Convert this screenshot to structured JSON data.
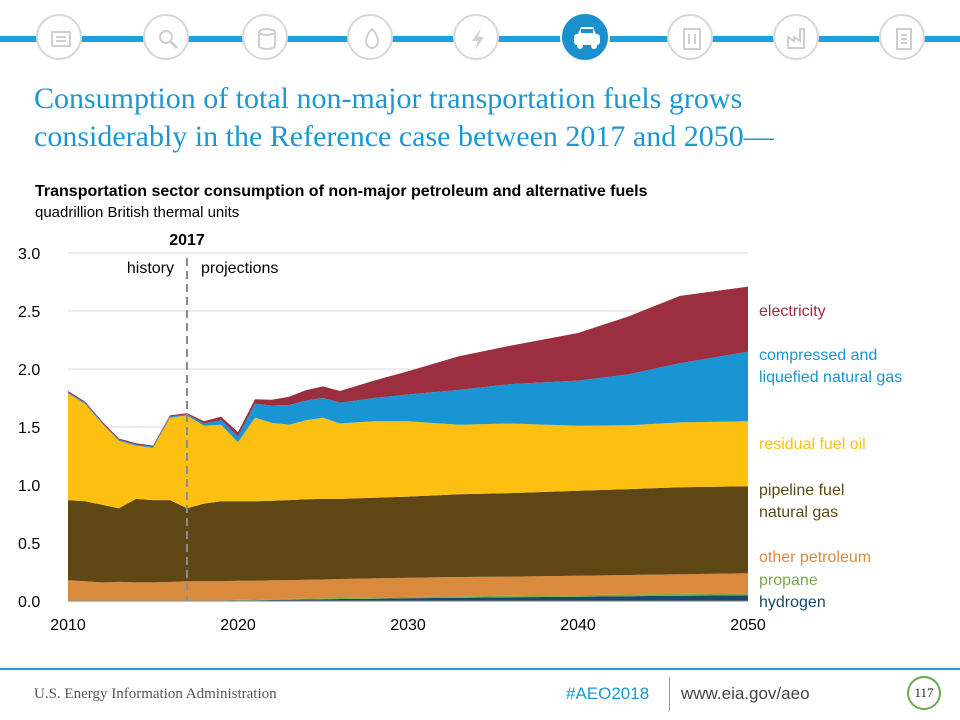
{
  "nav": {
    "icons": [
      "overview-icon",
      "analysis-icon",
      "oil-icon",
      "natural-gas-icon",
      "electricity-icon",
      "transportation-icon",
      "buildings-icon",
      "industrial-icon",
      "documents-icon"
    ],
    "active_index": 5,
    "accent_color": "#1da1dc"
  },
  "slide": {
    "title_line1": "Consumption of total non-major transportation fuels grows",
    "title_line2": "considerably in the Reference case between 2017 and 2050—"
  },
  "chart_data": {
    "type": "area",
    "stacked": true,
    "title": "Transportation sector consumption of non-major petroleum and alternative fuels",
    "subtitle": "quadrillion  British thermal units",
    "xlim": [
      2010,
      2050
    ],
    "ylim": [
      0,
      3.0
    ],
    "x_ticks": [
      2010,
      2020,
      2030,
      2040,
      2050
    ],
    "y_ticks": [
      "0.0",
      "0.5",
      "1.0",
      "1.5",
      "2.0",
      "2.5",
      "3.0"
    ],
    "grid": "horizontal",
    "divider": {
      "x": 2017,
      "label": "2017",
      "left_label": "history",
      "right_label": "projections"
    },
    "x": [
      2010,
      2011,
      2012,
      2013,
      2014,
      2015,
      2016,
      2017,
      2018,
      2019,
      2020,
      2021,
      2022,
      2023,
      2024,
      2025,
      2026,
      2028,
      2030,
      2033,
      2036,
      2040,
      2043,
      2046,
      2050
    ],
    "series": [
      {
        "name": "hydrogen",
        "color": "#1a4a6b",
        "values": [
          0,
          0,
          0,
          0,
          0,
          0,
          0,
          0,
          0,
          0,
          0.005,
          0.007,
          0.009,
          0.011,
          0.013,
          0.015,
          0.017,
          0.02,
          0.024,
          0.028,
          0.032,
          0.037,
          0.041,
          0.045,
          0.05
        ]
      },
      {
        "name": "propane",
        "color": "#79a94b",
        "values": [
          0.005,
          0.005,
          0.005,
          0.005,
          0.005,
          0.005,
          0.005,
          0.005,
          0.005,
          0.005,
          0.006,
          0.006,
          0.007,
          0.007,
          0.008,
          0.008,
          0.009,
          0.01,
          0.011,
          0.012,
          0.013,
          0.014,
          0.015,
          0.016,
          0.017
        ]
      },
      {
        "name": "other petroleum",
        "color": "#d98a3d",
        "values": [
          0.175,
          0.165,
          0.155,
          0.16,
          0.155,
          0.155,
          0.16,
          0.165,
          0.165,
          0.165,
          0.163,
          0.162,
          0.163,
          0.162,
          0.162,
          0.162,
          0.164,
          0.165,
          0.165,
          0.167,
          0.165,
          0.167,
          0.168,
          0.169,
          0.173
        ]
      },
      {
        "name": "pipeline fuel natural gas",
        "color": "#5e4714",
        "values": [
          0.69,
          0.69,
          0.67,
          0.635,
          0.72,
          0.71,
          0.705,
          0.63,
          0.67,
          0.69,
          0.686,
          0.685,
          0.686,
          0.69,
          0.695,
          0.695,
          0.69,
          0.695,
          0.7,
          0.713,
          0.72,
          0.732,
          0.741,
          0.75,
          0.75
        ]
      },
      {
        "name": "residual fuel oil",
        "color": "#fdc010",
        "values": [
          0.92,
          0.84,
          0.7,
          0.58,
          0.46,
          0.45,
          0.71,
          0.8,
          0.67,
          0.66,
          0.51,
          0.72,
          0.67,
          0.65,
          0.68,
          0.7,
          0.65,
          0.66,
          0.65,
          0.6,
          0.6,
          0.56,
          0.55,
          0.56,
          0.56
        ]
      },
      {
        "name": "compressed and liquefied natural gas",
        "color": "#1995d3",
        "values": [
          0.01,
          0.01,
          0.01,
          0.01,
          0.01,
          0.01,
          0.01,
          0.01,
          0.02,
          0.04,
          0.05,
          0.12,
          0.15,
          0.17,
          0.17,
          0.17,
          0.18,
          0.2,
          0.23,
          0.3,
          0.34,
          0.39,
          0.44,
          0.51,
          0.6
        ]
      },
      {
        "name": "electricity",
        "color": "#9b2f3f",
        "values": [
          0.01,
          0.01,
          0.01,
          0.01,
          0.01,
          0.01,
          0.01,
          0.01,
          0.02,
          0.03,
          0.035,
          0.04,
          0.05,
          0.07,
          0.09,
          0.1,
          0.1,
          0.15,
          0.2,
          0.29,
          0.33,
          0.41,
          0.5,
          0.58,
          0.56
        ]
      }
    ]
  },
  "legend_labels": {
    "electricity": [
      "electricity"
    ],
    "cng_lng": [
      "compressed and",
      "liquefied natural gas"
    ],
    "residual": [
      "residual  fuel oil"
    ],
    "pipeline": [
      "pipeline  fuel",
      "natural gas"
    ],
    "other_petroleum": [
      "other petroleum"
    ],
    "propane": [
      "propane"
    ],
    "hydrogen": [
      "hydrogen"
    ]
  },
  "footer": {
    "org": "U.S. Energy Information Administration",
    "hashtag": "#AEO2018",
    "url": "www.eia.gov/aeo",
    "page": "117"
  }
}
